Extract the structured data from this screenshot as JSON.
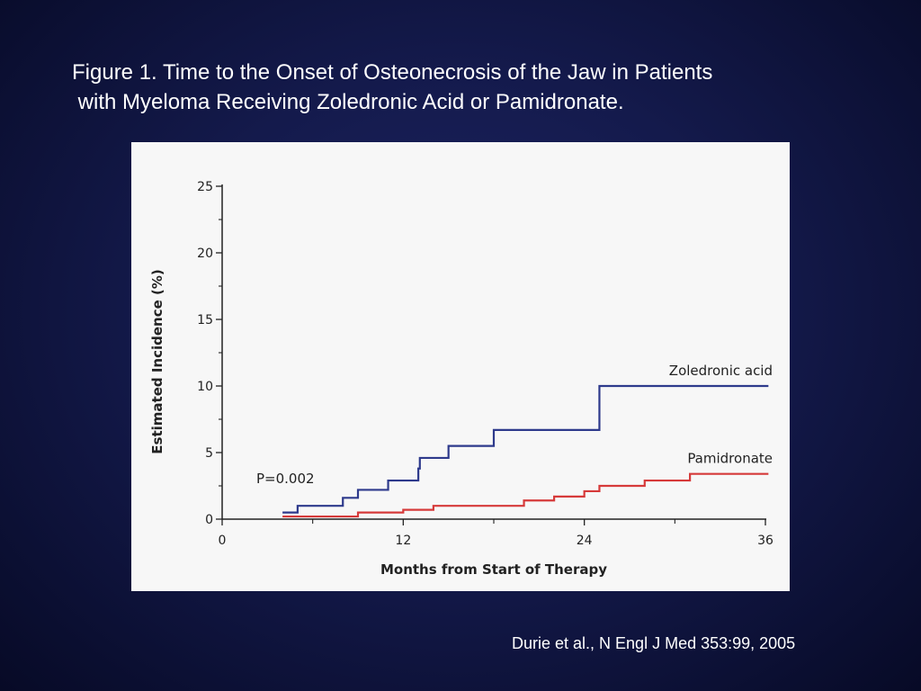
{
  "slide": {
    "title_line1": "Figure 1. Time to the Onset of Osteonecrosis of the Jaw in Patients",
    "title_line2": " with Myeloma Receiving Zoledronic Acid or Pamidronate.",
    "citation": "Durie et al., N Engl J Med 353:99, 2005"
  },
  "chart_data": {
    "type": "line",
    "step": true,
    "xlabel": "Months from Start of Therapy",
    "ylabel": "Estimated Incidence (%)",
    "xlim": [
      0,
      36
    ],
    "ylim": [
      0,
      25
    ],
    "xticks": [
      0,
      12,
      24,
      36
    ],
    "xminor": [
      6,
      18,
      30
    ],
    "yticks": [
      0,
      5,
      10,
      15,
      20,
      25
    ],
    "yminor": [
      2.5,
      7.5,
      12.5,
      17.5,
      22.5
    ],
    "annotation": "P=0.002",
    "grid": false,
    "series": [
      {
        "name": "Zoledronic acid",
        "color": "#2e3a8c",
        "x": [
          4,
          5,
          8,
          9,
          11,
          13,
          13.1,
          15,
          18,
          25,
          36.2
        ],
        "y": [
          0.5,
          1.0,
          1.6,
          2.2,
          2.9,
          3.8,
          4.6,
          5.5,
          6.7,
          10.0,
          10.0
        ]
      },
      {
        "name": "Pamidronate",
        "color": "#d63a3a",
        "x": [
          4,
          9,
          12,
          14,
          20,
          22,
          24,
          25,
          28,
          31,
          36.2
        ],
        "y": [
          0.2,
          0.5,
          0.7,
          1.0,
          1.4,
          1.7,
          2.1,
          2.5,
          2.9,
          3.4,
          3.4
        ]
      }
    ]
  }
}
